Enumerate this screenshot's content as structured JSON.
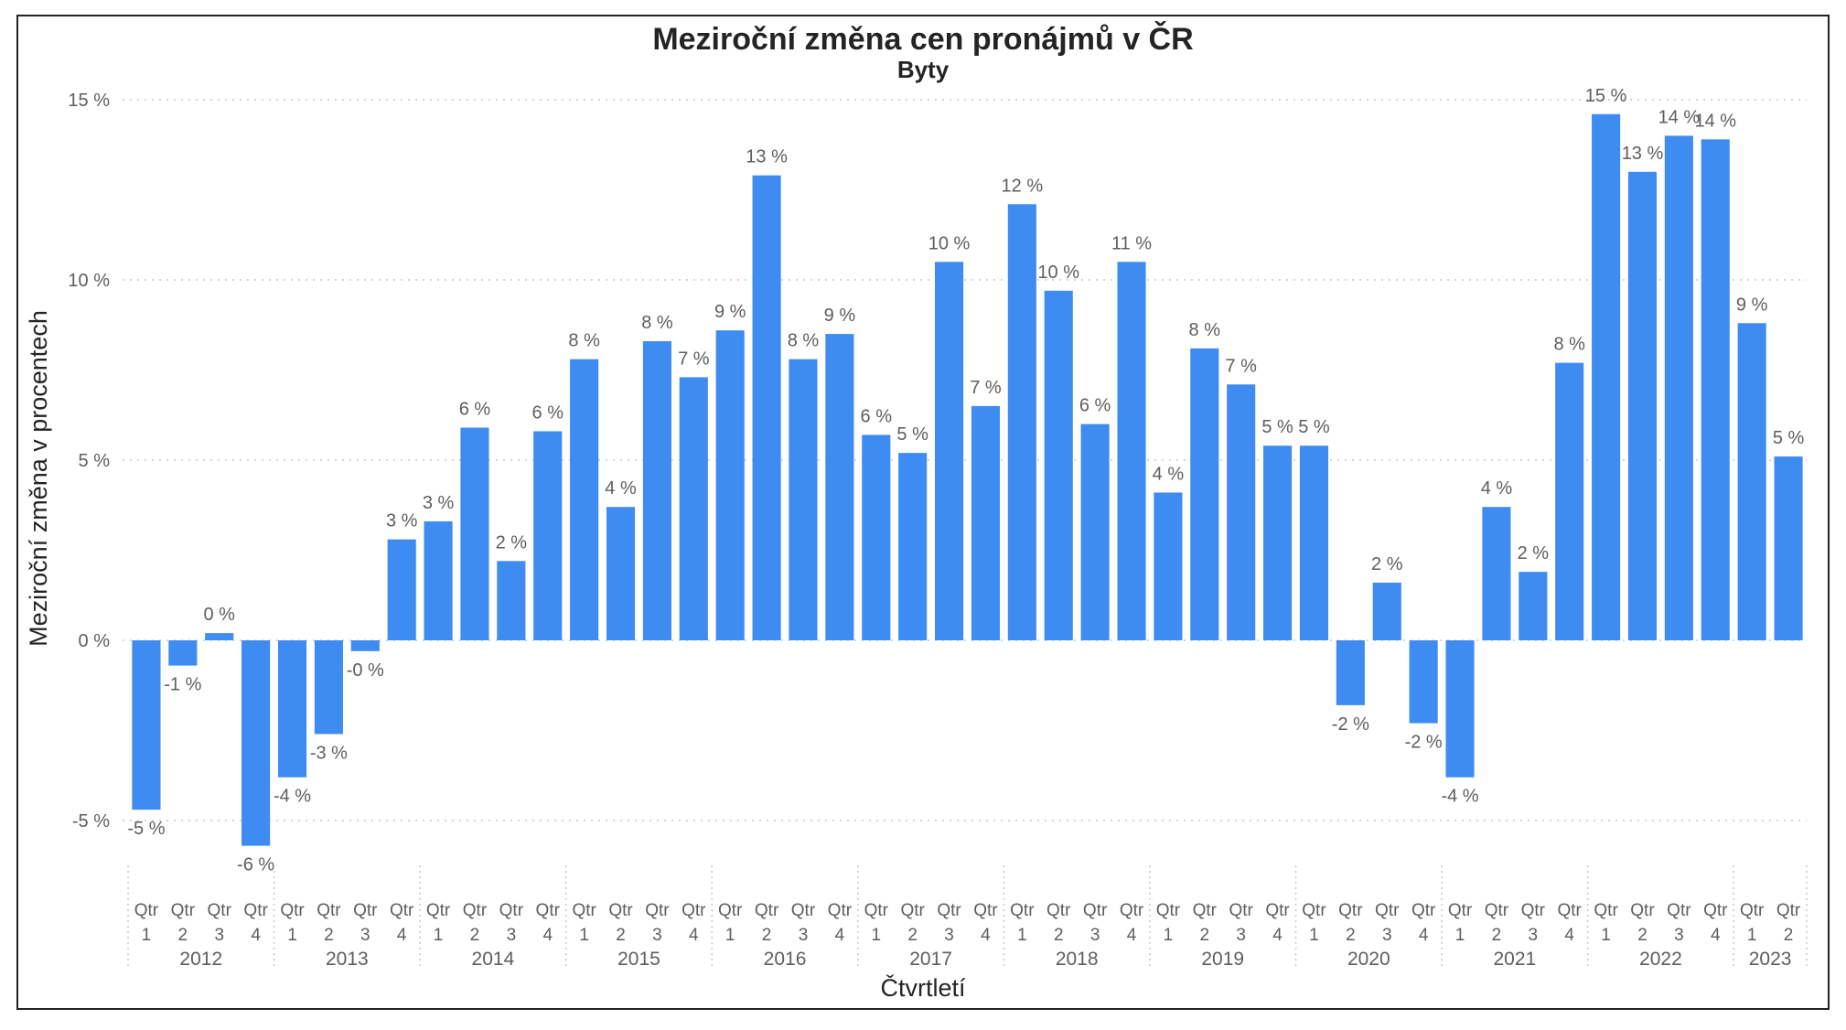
{
  "chart_data": {
    "type": "bar",
    "title": "Meziroční změna cen pronájmů v ČR",
    "subtitle": "Byty",
    "xlabel": "Čtvrtletí",
    "ylabel": "Meziroční změna v procentech",
    "ylim": [
      -7,
      15.5
    ],
    "y_ticks": [
      15,
      10,
      5,
      0,
      -5
    ],
    "y_tick_labels": [
      "15 %",
      "10 %",
      "5 %",
      "0 %",
      "-5 %"
    ],
    "grid": true,
    "legend": "none",
    "bar_color": "#3e8cf1",
    "quarter_prefix": "Qtr",
    "years": [
      {
        "label": "2012",
        "quarters": [
          "1",
          "2",
          "3",
          "4"
        ]
      },
      {
        "label": "2013",
        "quarters": [
          "1",
          "2",
          "3",
          "4"
        ]
      },
      {
        "label": "2014",
        "quarters": [
          "1",
          "2",
          "3",
          "4"
        ]
      },
      {
        "label": "2015",
        "quarters": [
          "1",
          "2",
          "3",
          "4"
        ]
      },
      {
        "label": "2016",
        "quarters": [
          "1",
          "2",
          "3",
          "4"
        ]
      },
      {
        "label": "2017",
        "quarters": [
          "1",
          "2",
          "3",
          "4"
        ]
      },
      {
        "label": "2018",
        "quarters": [
          "1",
          "2",
          "3",
          "4"
        ]
      },
      {
        "label": "2019",
        "quarters": [
          "1",
          "2",
          "3",
          "4"
        ]
      },
      {
        "label": "2020",
        "quarters": [
          "1",
          "2",
          "3",
          "4"
        ]
      },
      {
        "label": "2021",
        "quarters": [
          "1",
          "2",
          "3",
          "4"
        ]
      },
      {
        "label": "2022",
        "quarters": [
          "1",
          "2",
          "3",
          "4"
        ]
      },
      {
        "label": "2023",
        "quarters": [
          "1",
          "2"
        ]
      }
    ],
    "values": [
      -4.7,
      -0.7,
      0.2,
      -5.7,
      -3.8,
      -2.6,
      -0.3,
      2.8,
      3.3,
      5.9,
      2.2,
      5.8,
      7.8,
      3.7,
      8.3,
      7.3,
      8.6,
      12.9,
      7.8,
      8.5,
      5.7,
      5.2,
      10.5,
      6.5,
      12.1,
      9.7,
      6.0,
      10.5,
      4.1,
      8.1,
      7.1,
      5.4,
      5.4,
      -1.8,
      1.6,
      -2.3,
      -3.8,
      3.7,
      1.9,
      7.7,
      14.6,
      13.0,
      14.0,
      13.9,
      8.8,
      5.1
    ],
    "labels": [
      "-5 %",
      "-1 %",
      "0 %",
      "-6 %",
      "-4 %",
      "-3 %",
      "-0 %",
      "3 %",
      "3 %",
      "6 %",
      "2 %",
      "6 %",
      "8 %",
      "4 %",
      "8 %",
      "7 %",
      "9 %",
      "13 %",
      "8 %",
      "9 %",
      "6 %",
      "5 %",
      "10 %",
      "7 %",
      "12 %",
      "10 %",
      "6 %",
      "11 %",
      "4 %",
      "8 %",
      "7 %",
      "5 %",
      "5 %",
      "-2 %",
      "2 %",
      "-2 %",
      "-4 %",
      "4 %",
      "2 %",
      "8 %",
      "15 %",
      "13 %",
      "14 %",
      "14 %",
      "9 %",
      "5 %"
    ]
  }
}
